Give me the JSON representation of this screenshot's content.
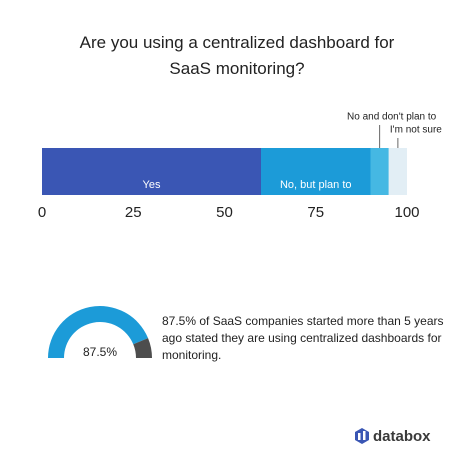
{
  "chart_data": [
    {
      "type": "stacked-bar",
      "title": "Are you using a centralized dashboard for SaaS monitoring?",
      "series": [
        {
          "name": "Yes",
          "color": "#3a56b4",
          "values": [
            60
          ]
        },
        {
          "name": "No, but plan to",
          "color": "#1c9bd8",
          "values": [
            30
          ]
        },
        {
          "name": "No and don't plan to",
          "color": "#45b8e3",
          "values": [
            5
          ]
        },
        {
          "name": "I'm not sure",
          "color": "#e2eef5",
          "values": [
            5
          ]
        }
      ],
      "xlim": [
        0,
        100
      ],
      "xticks": [
        0,
        25,
        50,
        75,
        100
      ]
    },
    {
      "type": "gauge",
      "values": [
        87.5
      ],
      "value_labels": [
        "87.5%"
      ],
      "ylim": [
        0,
        100
      ],
      "colors": [
        "#1c9bd8",
        "#4d4d4d"
      ],
      "description": "87.5% of SaaS companies started more than 5 years ago stated they are using centralized dashboards for monitoring."
    }
  ],
  "brand": "databox"
}
